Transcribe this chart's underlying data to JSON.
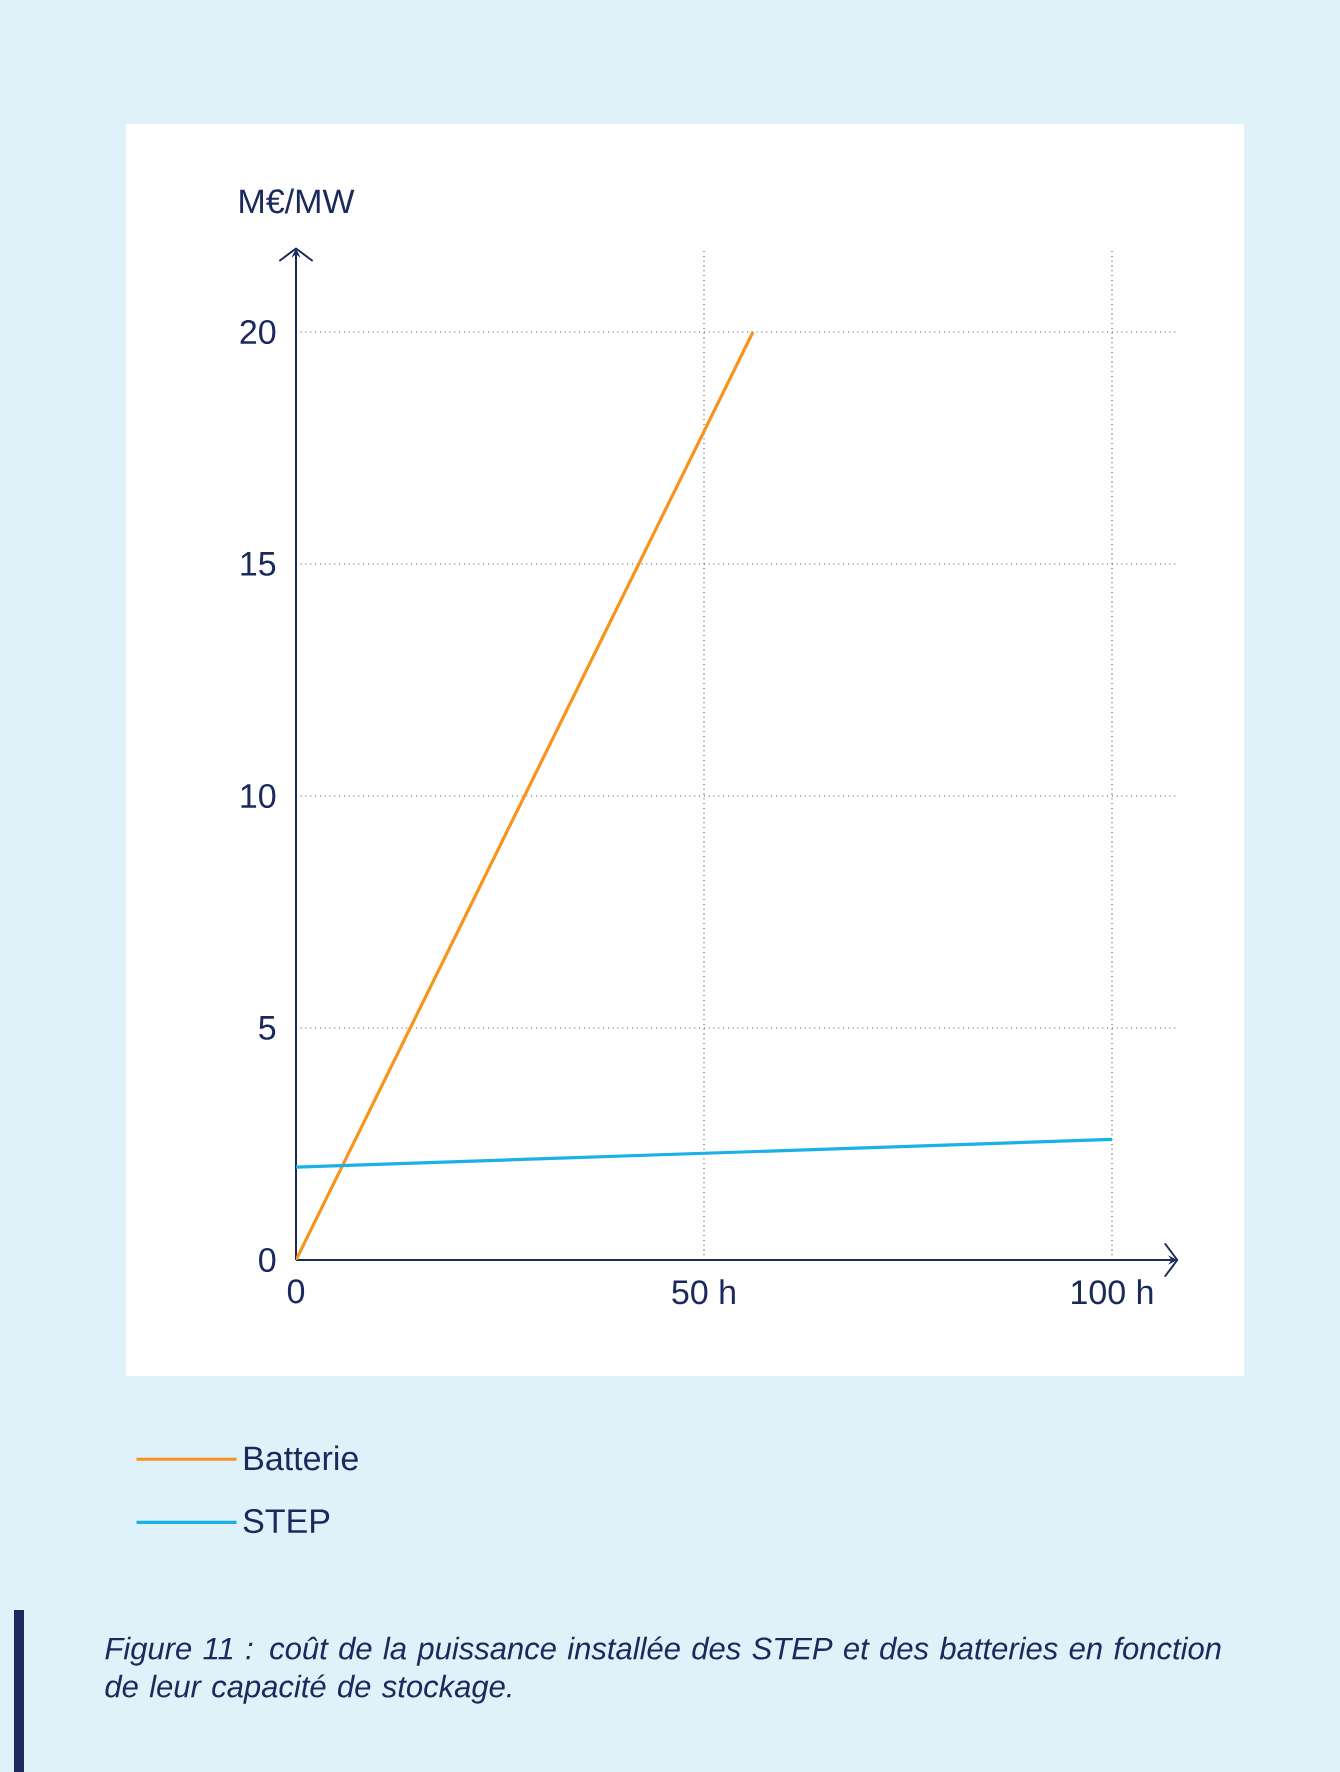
{
  "chart_data": {
    "type": "line",
    "ylabel": "M€/MW",
    "annotations": [
      "Figure 11 : coût de la puissance installée des STEP et des batteries en fonction de leur capacité de stockage."
    ],
    "series": [
      {
        "name": "Batterie",
        "color": "#f7941d",
        "x": [
          0,
          56
        ],
        "values": [
          0,
          20
        ]
      },
      {
        "name": "STEP",
        "color": "#1ab0e8",
        "x": [
          0,
          100
        ],
        "values": [
          2,
          2.6
        ]
      }
    ],
    "xlim": [
      0,
      108
    ],
    "ylim": [
      0,
      21.8
    ],
    "xticks": [
      0,
      {
        "value": 50,
        "label": "50 h"
      },
      {
        "value": 100,
        "label": "100 h"
      }
    ],
    "yticks": [
      0,
      5,
      10,
      15,
      20
    ],
    "grid": true,
    "legend": "bottom",
    "line_style": "solid"
  }
}
